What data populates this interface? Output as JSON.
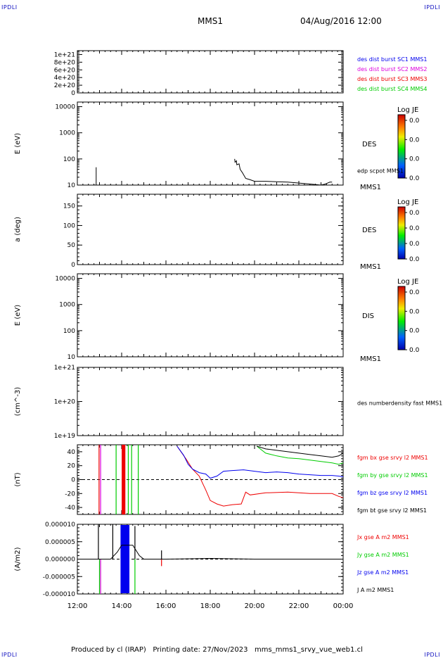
{
  "corners": {
    "tl": "IPDLI",
    "tr": "IPDLI",
    "bl": "IPDLI",
    "br": "IPDLI"
  },
  "header": {
    "spacecraft": "MMS1",
    "datetime": "04/Aug/2016 12:00"
  },
  "footer": {
    "text": "Produced by cl (IRAP)   Printing date: 27/Nov/2023   mms_mms1_srvy_vue_web1.cl"
  },
  "colors": {
    "black": "#000000",
    "blue": "#0000ee",
    "red": "#ee0000",
    "green": "#00cc00",
    "magenta": "#dd00dd"
  },
  "time_axis": {
    "ticks": [
      "12:00",
      "14:00",
      "16:00",
      "18:00",
      "20:00",
      "22:00",
      "00:00"
    ]
  },
  "chart_data": [
    {
      "type": "line",
      "panel": "burst",
      "yticks": [
        "1e+21",
        "8e+20",
        "6e+20",
        "4e+20",
        "2e+20",
        "0"
      ],
      "ylim": [
        0,
        1.1e+21
      ],
      "legend": [
        {
          "label": "des dist burst SC1 MMS1",
          "color": "#0000ee"
        },
        {
          "label": "des dist burst SC2 MMS2",
          "color": "#dd00dd"
        },
        {
          "label": "des dist burst SC3 MMS3",
          "color": "#ee0000"
        },
        {
          "label": "des dist burst SC4 MMS4",
          "color": "#00cc00"
        }
      ],
      "reference_line": 0
    },
    {
      "type": "heatmap",
      "panel": "des-energy",
      "ylabel": "E (eV)",
      "scale": "log",
      "yticks": [
        "10000",
        "1000",
        "100",
        "10"
      ],
      "ylim": [
        10,
        15000
      ],
      "side_label": "DES",
      "unit_label": "MMS1",
      "colorbar": {
        "title": "Log JE",
        "ticks": [
          "0.0",
          "0.0",
          "0.0",
          "0.0"
        ]
      },
      "overlay": {
        "name": "edp scpot MMS1",
        "x_hours": [
          12.85,
          12.85,
          12.86,
          12.86,
          19.1,
          19.12,
          19.18,
          19.2,
          19.3,
          19.35,
          19.45,
          19.6,
          19.8,
          20.0,
          20.5,
          21.0,
          21.5,
          22.0,
          22.5,
          23.0,
          23.2,
          23.3,
          23.4,
          23.5
        ],
        "y": [
          48,
          10,
          10,
          10,
          100,
          75,
          85,
          60,
          65,
          40,
          30,
          18,
          16,
          14,
          14,
          13.5,
          13,
          12,
          11,
          10,
          11,
          12,
          13,
          13
        ]
      }
    },
    {
      "type": "heatmap",
      "panel": "des-pitch",
      "ylabel": "a (deg)",
      "yticks": [
        "150",
        "100",
        "50",
        "0"
      ],
      "ylim": [
        0,
        180
      ],
      "side_label": "DES",
      "unit_label": "MMS1",
      "colorbar": {
        "title": "Log JE",
        "ticks": [
          "0.0",
          "0.0",
          "0.0",
          "0.0"
        ]
      }
    },
    {
      "type": "heatmap",
      "panel": "dis-energy",
      "ylabel": "E (eV)",
      "scale": "log",
      "yticks": [
        "10000",
        "1000",
        "100",
        "10"
      ],
      "ylim": [
        10,
        15000
      ],
      "side_label": "DIS",
      "unit_label": "MMS1",
      "colorbar": {
        "title": "Log JE",
        "ticks": [
          "0.0",
          "0.0",
          "0.0",
          "0.0"
        ]
      }
    },
    {
      "type": "line",
      "panel": "density",
      "ylabel": "(cm^-3)",
      "scale": "log",
      "yticks": [
        "1e+21",
        "1e+20",
        "1e+19"
      ],
      "ylim": [
        1e+19,
        1e+21
      ],
      "legend": [
        {
          "label": "des numberdensity fast MMS1",
          "color": "#000000"
        }
      ]
    },
    {
      "type": "line",
      "panel": "fgm",
      "ylabel": "(nT)",
      "yticks": [
        "40",
        "20",
        "0",
        "-20",
        "-40"
      ],
      "ylim": [
        -50,
        50
      ],
      "reference_line": 0,
      "legend": [
        {
          "label": "fgm bx gse srvy l2 MMS1",
          "color": "#ee0000"
        },
        {
          "label": "fgm by gse srvy l2 MMS1",
          "color": "#00cc00"
        },
        {
          "label": "fgm bz gse srvy l2 MMS1",
          "color": "#0000ee"
        },
        {
          "label": "fgm bt gse srvy l2 MMS1",
          "color": "#000000"
        }
      ],
      "spikes": [
        {
          "t": 12.98,
          "color": "#ee0000"
        },
        {
          "t": 13.05,
          "color": "#dd00dd"
        },
        {
          "t": 13.75,
          "color": "#00cc00"
        },
        {
          "t": 14.05,
          "color": "#ee0000"
        },
        {
          "t": 14.12,
          "color": "#ee0000"
        },
        {
          "t": 14.3,
          "color": "#00cc00"
        },
        {
          "t": 14.45,
          "color": "#00cc00"
        },
        {
          "t": 14.75,
          "color": "#00cc00"
        }
      ],
      "series": [
        {
          "name": "fgm bx gse srvy l2 MMS1",
          "color": "#ee0000",
          "x": [
            16.5,
            16.9,
            17.2,
            17.5,
            17.8,
            18.0,
            18.3,
            18.6,
            19.0,
            19.4,
            19.6,
            19.8,
            20.5,
            21.5,
            22.5,
            23.5,
            23.8,
            24.0
          ],
          "y": [
            48,
            30,
            15,
            5,
            -15,
            -30,
            -35,
            -38,
            -36,
            -35,
            -18,
            -22,
            -19,
            -18,
            -20,
            -20,
            -24,
            -26
          ]
        },
        {
          "name": "fgm by gse srvy l2 MMS1",
          "color": "#00cc00",
          "x": [
            20.1,
            20.5,
            21.0,
            21.5,
            22.0,
            22.5,
            23.0,
            23.5,
            23.8,
            24.0
          ],
          "y": [
            48,
            38,
            34,
            31,
            30,
            28,
            26,
            24,
            22,
            24
          ]
        },
        {
          "name": "fgm bz gse srvy l2 MMS1",
          "color": "#0000ee",
          "x": [
            16.5,
            16.8,
            17.0,
            17.2,
            17.5,
            17.8,
            18.0,
            18.3,
            18.6,
            19.0,
            19.5,
            20.0,
            20.5,
            21.0,
            21.5,
            22.0,
            22.5,
            23.0,
            23.5,
            23.8,
            24.0
          ],
          "y": [
            48,
            35,
            22,
            15,
            10,
            8,
            2,
            5,
            12,
            13,
            14,
            12,
            10,
            11,
            10,
            8,
            7,
            6,
            6,
            5,
            4
          ]
        },
        {
          "name": "fgm bt gse srvy l2 MMS1",
          "color": "#000000",
          "x": [
            20.1,
            20.5,
            21.0,
            21.5,
            22.0,
            22.5,
            23.0,
            23.5,
            23.8,
            24.0
          ],
          "y": [
            48,
            44,
            42,
            40,
            38,
            36,
            34,
            32,
            34,
            38
          ]
        }
      ]
    },
    {
      "type": "line",
      "panel": "current",
      "ylabel": "(A/m2)",
      "yticks": [
        "0.000010",
        "0.000005",
        "0.000000",
        "-0.000005",
        "-0.000010"
      ],
      "ylim": [
        -1e-05,
        1e-05
      ],
      "reference_line": 0,
      "legend": [
        {
          "label": "Jx gse A m2 MMS1",
          "color": "#ee0000"
        },
        {
          "label": "Jy gse A m2 MMS1",
          "color": "#00cc00"
        },
        {
          "label": "Jz gse A m2 MMS1",
          "color": "#0000ee"
        },
        {
          "label": "J A m2 MMS1",
          "color": "#000000"
        }
      ],
      "band": {
        "t_start": 13.95,
        "t_end": 14.35,
        "color": "#0000ee"
      },
      "spikes": [
        {
          "t": 12.95,
          "y": 1e-05,
          "color": "#000000"
        },
        {
          "t": 13.0,
          "y": -1e-05,
          "color": "#00cc00"
        },
        {
          "t": 13.05,
          "y": -1e-05,
          "color": "#dd00dd"
        },
        {
          "t": 13.6,
          "y": 1e-05,
          "color": "#000000"
        },
        {
          "t": 14.6,
          "y": 9.5e-06,
          "color": "#000000"
        },
        {
          "t": 14.6,
          "y": -1e-05,
          "color": "#00cc00"
        },
        {
          "t": 15.8,
          "y": 2.5e-06,
          "color": "#000000"
        },
        {
          "t": 15.8,
          "y": -2e-06,
          "color": "#ee0000"
        }
      ],
      "series": [
        {
          "name": "J A m2 MMS1",
          "color": "#000000",
          "x": [
            12.0,
            13.5,
            13.8,
            14.0,
            14.5,
            14.8,
            15.0,
            16.0,
            18.0,
            20.0,
            22.0,
            24.0
          ],
          "y": [
            0,
            0,
            2e-06,
            4e-06,
            4e-06,
            1e-06,
            0,
            0,
            2e-07,
            0,
            0,
            0
          ]
        }
      ]
    }
  ]
}
